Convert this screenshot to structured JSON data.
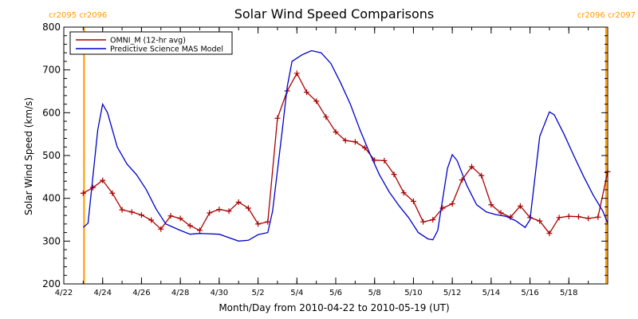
{
  "chart_data": {
    "type": "line",
    "title": "Solar Wind Speed Comparisons",
    "xlabel": "Month/Day from 2010-04-22 to 2010-05-19 (UT)",
    "ylabel": "Solar Wind Speed (km/s)",
    "xlim": [
      "2010-04-22",
      "2010-05-20"
    ],
    "ylim": [
      200,
      800
    ],
    "yticks": [
      200,
      300,
      400,
      500,
      600,
      700,
      800
    ],
    "xticks": [
      {
        "date": "2010-04-22",
        "label": "4/22"
      },
      {
        "date": "2010-04-24",
        "label": "4/24"
      },
      {
        "date": "2010-04-26",
        "label": "4/26"
      },
      {
        "date": "2010-04-28",
        "label": "4/28"
      },
      {
        "date": "2010-04-30",
        "label": "4/30"
      },
      {
        "date": "2010-05-02",
        "label": "5/2"
      },
      {
        "date": "2010-05-04",
        "label": "5/4"
      },
      {
        "date": "2010-05-06",
        "label": "5/6"
      },
      {
        "date": "2010-05-08",
        "label": "5/8"
      },
      {
        "date": "2010-05-10",
        "label": "5/10"
      },
      {
        "date": "2010-05-12",
        "label": "5/12"
      },
      {
        "date": "2010-05-14",
        "label": "5/14"
      },
      {
        "date": "2010-05-16",
        "label": "5/16"
      },
      {
        "date": "2010-05-18",
        "label": "5/18"
      }
    ],
    "grid": false,
    "legend_position": "top-left",
    "carrington_markers": [
      {
        "date": "2010-04-23 01:00",
        "label_left": "cr2095",
        "label_right": "cr2096",
        "color": "#ff9900"
      },
      {
        "date": "2010-05-19 22:00",
        "label_left": "cr2096",
        "label_right": "cr2097",
        "color": "#ff9900"
      }
    ],
    "series": [
      {
        "name": "OMNI_M (12-hr avg)",
        "color": "#aa0000",
        "marker": "+",
        "points": [
          [
            "2010-04-23 00:00",
            412
          ],
          [
            "2010-04-23 12:00",
            425
          ],
          [
            "2010-04-24 00:00",
            442
          ],
          [
            "2010-04-24 12:00",
            412
          ],
          [
            "2010-04-25 00:00",
            373
          ],
          [
            "2010-04-25 12:00",
            368
          ],
          [
            "2010-04-26 00:00",
            361
          ],
          [
            "2010-04-26 12:00",
            349
          ],
          [
            "2010-04-27 00:00",
            328
          ],
          [
            "2010-04-27 12:00",
            359
          ],
          [
            "2010-04-28 00:00",
            353
          ],
          [
            "2010-04-28 12:00",
            336
          ],
          [
            "2010-04-29 00:00",
            325
          ],
          [
            "2010-04-29 12:00",
            366
          ],
          [
            "2010-04-30 00:00",
            374
          ],
          [
            "2010-04-30 12:00",
            370
          ],
          [
            "2010-05-01 00:00",
            391
          ],
          [
            "2010-05-01 12:00",
            377
          ],
          [
            "2010-05-02 00:00",
            340
          ],
          [
            "2010-05-02 12:00",
            345
          ],
          [
            "2010-05-03 00:00",
            587
          ],
          [
            "2010-05-03 12:00",
            651
          ],
          [
            "2010-05-04 00:00",
            692
          ],
          [
            "2010-05-04 12:00",
            648
          ],
          [
            "2010-05-05 00:00",
            627
          ],
          [
            "2010-05-05 12:00",
            590
          ],
          [
            "2010-05-06 00:00",
            555
          ],
          [
            "2010-05-06 12:00",
            535
          ],
          [
            "2010-05-07 00:00",
            532
          ],
          [
            "2010-05-07 12:00",
            518
          ],
          [
            "2010-05-08 00:00",
            489
          ],
          [
            "2010-05-08 12:00",
            488
          ],
          [
            "2010-05-09 00:00",
            456
          ],
          [
            "2010-05-09 12:00",
            413
          ],
          [
            "2010-05-10 00:00",
            393
          ],
          [
            "2010-05-10 12:00",
            345
          ],
          [
            "2010-05-11 00:00",
            350
          ],
          [
            "2010-05-11 12:00",
            377
          ],
          [
            "2010-05-12 00:00",
            387
          ],
          [
            "2010-05-12 12:00",
            443
          ],
          [
            "2010-05-13 00:00",
            474
          ],
          [
            "2010-05-13 12:00",
            453
          ],
          [
            "2010-05-14 00:00",
            385
          ],
          [
            "2010-05-14 12:00",
            366
          ],
          [
            "2010-05-15 00:00",
            356
          ],
          [
            "2010-05-15 12:00",
            382
          ],
          [
            "2010-05-16 00:00",
            355
          ],
          [
            "2010-05-16 12:00",
            347
          ],
          [
            "2010-05-17 00:00",
            318
          ],
          [
            "2010-05-17 12:00",
            355
          ],
          [
            "2010-05-18 00:00",
            358
          ],
          [
            "2010-05-18 12:00",
            357
          ],
          [
            "2010-05-19 00:00",
            353
          ],
          [
            "2010-05-19 12:00",
            356
          ],
          [
            "2010-05-20 00:00",
            462
          ]
        ]
      },
      {
        "name": "Predictive Science MAS Model",
        "color": "#0000cc",
        "marker": "none",
        "points": [
          [
            "2010-04-23 00:00",
            332
          ],
          [
            "2010-04-23 06:00",
            342
          ],
          [
            "2010-04-23 18:00",
            560
          ],
          [
            "2010-04-24 00:00",
            620
          ],
          [
            "2010-04-24 06:00",
            600
          ],
          [
            "2010-04-24 18:00",
            520
          ],
          [
            "2010-04-25 06:00",
            480
          ],
          [
            "2010-04-25 18:00",
            455
          ],
          [
            "2010-04-26 06:00",
            420
          ],
          [
            "2010-04-26 18:00",
            375
          ],
          [
            "2010-04-27 06:00",
            340
          ],
          [
            "2010-04-28 00:00",
            325
          ],
          [
            "2010-04-28 12:00",
            316
          ],
          [
            "2010-04-29 00:00",
            318
          ],
          [
            "2010-04-30 00:00",
            316
          ],
          [
            "2010-04-30 12:00",
            308
          ],
          [
            "2010-05-01 00:00",
            300
          ],
          [
            "2010-05-01 12:00",
            302
          ],
          [
            "2010-05-02 00:00",
            315
          ],
          [
            "2010-05-02 12:00",
            320
          ],
          [
            "2010-05-02 18:00",
            370
          ],
          [
            "2010-05-03 06:00",
            560
          ],
          [
            "2010-05-03 12:00",
            660
          ],
          [
            "2010-05-03 18:00",
            720
          ],
          [
            "2010-05-04 06:00",
            735
          ],
          [
            "2010-05-04 18:00",
            745
          ],
          [
            "2010-05-05 06:00",
            740
          ],
          [
            "2010-05-05 18:00",
            715
          ],
          [
            "2010-05-06 06:00",
            670
          ],
          [
            "2010-05-06 18:00",
            620
          ],
          [
            "2010-05-07 06:00",
            560
          ],
          [
            "2010-05-07 18:00",
            505
          ],
          [
            "2010-05-08 06:00",
            455
          ],
          [
            "2010-05-08 18:00",
            415
          ],
          [
            "2010-05-09 06:00",
            383
          ],
          [
            "2010-05-09 18:00",
            355
          ],
          [
            "2010-05-10 06:00",
            320
          ],
          [
            "2010-05-10 18:00",
            305
          ],
          [
            "2010-05-11 00:00",
            303
          ],
          [
            "2010-05-11 06:00",
            325
          ],
          [
            "2010-05-11 18:00",
            470
          ],
          [
            "2010-05-12 00:00",
            502
          ],
          [
            "2010-05-12 06:00",
            488
          ],
          [
            "2010-05-12 18:00",
            430
          ],
          [
            "2010-05-13 06:00",
            385
          ],
          [
            "2010-05-13 18:00",
            368
          ],
          [
            "2010-05-14 06:00",
            362
          ],
          [
            "2010-05-14 18:00",
            358
          ],
          [
            "2010-05-15 06:00",
            348
          ],
          [
            "2010-05-15 18:00",
            332
          ],
          [
            "2010-05-16 00:00",
            350
          ],
          [
            "2010-05-16 12:00",
            545
          ],
          [
            "2010-05-17 00:00",
            602
          ],
          [
            "2010-05-17 06:00",
            595
          ],
          [
            "2010-05-17 18:00",
            550
          ],
          [
            "2010-05-18 06:00",
            500
          ],
          [
            "2010-05-18 18:00",
            452
          ],
          [
            "2010-05-19 06:00",
            408
          ],
          [
            "2010-05-19 18:00",
            370
          ],
          [
            "2010-05-20 00:00",
            342
          ]
        ]
      }
    ]
  }
}
